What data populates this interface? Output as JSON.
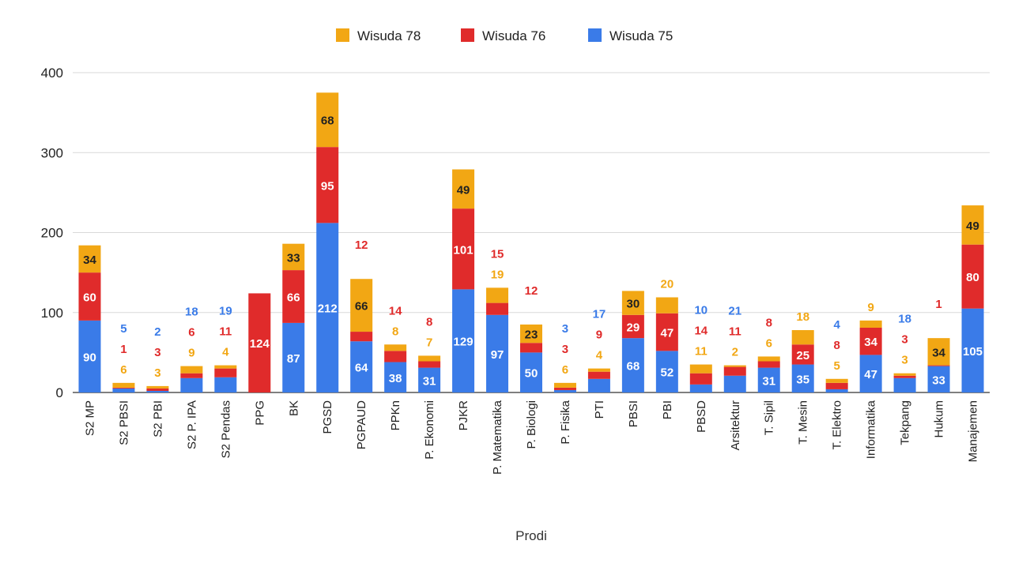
{
  "chart_data": {
    "type": "bar",
    "stacked": true,
    "title": "",
    "xlabel": "Prodi",
    "ylabel": "",
    "ylim": [
      0,
      400
    ],
    "yticks": [
      0,
      100,
      200,
      300,
      400
    ],
    "grid": true,
    "legend_position": "top",
    "categories": [
      "S2 MP",
      "S2 PBSI",
      "S2 PBI",
      "S2 P. IPA",
      "S2 Pendas",
      "PPG",
      "BK",
      "PGSD",
      "PGPAUD",
      "PPKn",
      "P. Ekonomi",
      "PJKR",
      "P. Matematika",
      "P. Biologi",
      "P. Fisika",
      "PTI",
      "PBSI",
      "PBI",
      "PBSD",
      "Arsitektur",
      "T. Sipil",
      "T. Mesin",
      "T. Elektro",
      "Informatika",
      "Tekpang",
      "Hukum",
      "Manajemen"
    ],
    "series": [
      {
        "name": "Wisuda 75",
        "color": "#3a7be8",
        "values": [
          90,
          5,
          2,
          18,
          19,
          0,
          87,
          212,
          64,
          38,
          31,
          129,
          97,
          50,
          3,
          17,
          68,
          52,
          10,
          21,
          31,
          35,
          4,
          47,
          18,
          33,
          105
        ]
      },
      {
        "name": "Wisuda 76",
        "color": "#e02b2b",
        "values": [
          60,
          1,
          3,
          6,
          11,
          124,
          66,
          95,
          12,
          14,
          8,
          101,
          15,
          12,
          3,
          9,
          29,
          47,
          14,
          11,
          8,
          25,
          8,
          34,
          3,
          1,
          80
        ]
      },
      {
        "name": "Wisuda 78",
        "color": "#f2a714",
        "values": [
          34,
          6,
          3,
          9,
          4,
          0,
          33,
          68,
          66,
          8,
          7,
          49,
          19,
          23,
          6,
          4,
          30,
          20,
          11,
          2,
          6,
          18,
          5,
          9,
          3,
          34,
          49
        ]
      }
    ]
  }
}
